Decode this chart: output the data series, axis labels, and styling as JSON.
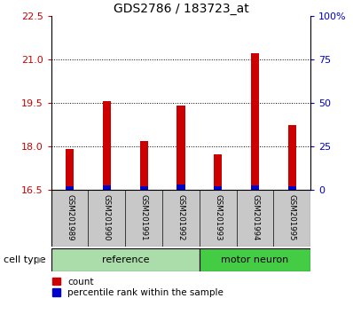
{
  "title": "GDS2786 / 183723_at",
  "categories": [
    "GSM201989",
    "GSM201990",
    "GSM201991",
    "GSM201992",
    "GSM201993",
    "GSM201994",
    "GSM201995"
  ],
  "red_values": [
    17.9,
    19.55,
    18.2,
    19.4,
    17.72,
    21.2,
    18.72
  ],
  "blue_values": [
    16.62,
    16.67,
    16.62,
    16.68,
    16.63,
    16.66,
    16.63
  ],
  "ymin": 16.5,
  "ymax": 22.5,
  "yticks_red": [
    16.5,
    18.0,
    19.5,
    21.0,
    22.5
  ],
  "yticks_blue": [
    0,
    25,
    50,
    75,
    100
  ],
  "n_ref": 4,
  "n_mot": 3,
  "red_color": "#cc0000",
  "blue_color": "#0000cc",
  "ref_bg_color": "#aaddaa",
  "motor_bg_color": "#44cc44",
  "bar_bg_color": "#c8c8c8",
  "bar_width": 0.75,
  "red_bar_width": 0.22,
  "legend_count_label": "count",
  "legend_percentile_label": "percentile rank within the sample",
  "cell_type_label": "cell type",
  "reference_label": "reference",
  "motor_neuron_label": "motor neuron",
  "title_fontsize": 10,
  "tick_fontsize": 8,
  "label_fontsize": 8
}
